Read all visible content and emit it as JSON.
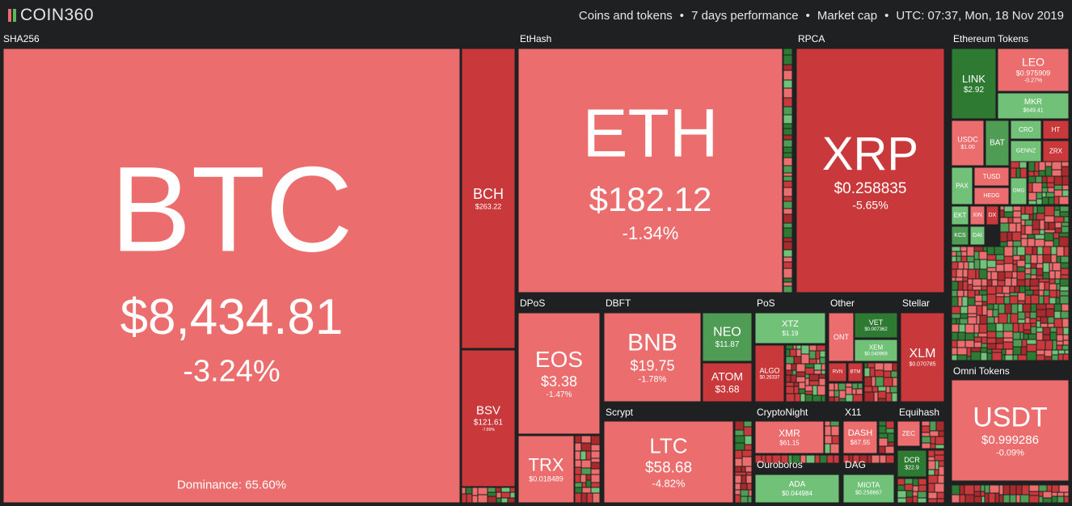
{
  "header": {
    "logo": "COIN360",
    "filters": [
      "Coins and tokens",
      "7 days performance",
      "Market cap",
      "UTC: 07:37, Mon, 18 Nov 2019"
    ]
  },
  "groups": [
    {
      "name": "SHA256",
      "tiles": [
        {
          "name": "BTC",
          "price": "$8,434.81",
          "change": "-3.24%",
          "dominance": "Dominance: 65.60%"
        },
        {
          "name": "BCH",
          "price": "$263.22"
        },
        {
          "name": "BSV",
          "price": "$121.61",
          "change": "-7.89%"
        }
      ]
    },
    {
      "name": "EtHash",
      "tiles": [
        {
          "name": "ETH",
          "price": "$182.12",
          "change": "-1.34%"
        }
      ]
    },
    {
      "name": "RPCA",
      "tiles": [
        {
          "name": "XRP",
          "price": "$0.258835",
          "change": "-5.65%"
        }
      ]
    },
    {
      "name": "Ethereum Tokens",
      "tiles": [
        {
          "name": "LINK",
          "price": "$2.92"
        },
        {
          "name": "LEO",
          "price": "$0.975909",
          "change": "-0.27%"
        },
        {
          "name": "MKR",
          "price": "$649.41"
        },
        {
          "name": "USDC",
          "price": "$1.00"
        },
        {
          "name": "BAT"
        },
        {
          "name": "CRO"
        },
        {
          "name": "HT"
        },
        {
          "name": "GENNZ"
        },
        {
          "name": "ZRX"
        },
        {
          "name": "PAX"
        },
        {
          "name": "TUSD"
        },
        {
          "name": "HEDG"
        },
        {
          "name": "OMG"
        },
        {
          "name": "EKT"
        },
        {
          "name": "XIN"
        },
        {
          "name": "DX"
        },
        {
          "name": "KCS"
        },
        {
          "name": "DAI"
        }
      ]
    },
    {
      "name": "DPoS",
      "tiles": [
        {
          "name": "EOS",
          "price": "$3.38",
          "change": "-1.47%"
        },
        {
          "name": "TRX",
          "price": "$0.018489"
        }
      ]
    },
    {
      "name": "DBFT",
      "tiles": [
        {
          "name": "BNB",
          "price": "$19.75",
          "change": "-1.78%"
        },
        {
          "name": "NEO",
          "price": "$11.87"
        },
        {
          "name": "ATOM",
          "price": "$3.68"
        }
      ]
    },
    {
      "name": "PoS",
      "tiles": [
        {
          "name": "XTZ",
          "price": "$1.19"
        },
        {
          "name": "ALGO",
          "price": "$0.26337"
        }
      ]
    },
    {
      "name": "Other",
      "tiles": [
        {
          "name": "ONT"
        },
        {
          "name": "VET",
          "price": "$0.007362"
        },
        {
          "name": "XEM",
          "price": "$0.040969"
        },
        {
          "name": "RVN"
        },
        {
          "name": "BTM"
        }
      ]
    },
    {
      "name": "Stellar",
      "tiles": [
        {
          "name": "XLM",
          "price": "$0.070785"
        }
      ]
    },
    {
      "name": "Scrypt",
      "tiles": [
        {
          "name": "LTC",
          "price": "$58.68",
          "change": "-4.82%"
        }
      ]
    },
    {
      "name": "CryptoNight",
      "tiles": [
        {
          "name": "XMR",
          "price": "$61.15"
        }
      ]
    },
    {
      "name": "X11",
      "tiles": [
        {
          "name": "DASH",
          "price": "$67.55"
        }
      ]
    },
    {
      "name": "Equihash",
      "tiles": [
        {
          "name": "ZEC"
        },
        {
          "name": "DCR",
          "price": "$22.9"
        }
      ]
    },
    {
      "name": "Ouroboros",
      "tiles": [
        {
          "name": "ADA",
          "price": "$0.044984"
        }
      ]
    },
    {
      "name": "DAG",
      "tiles": [
        {
          "name": "MIOTA",
          "price": "$0.258667"
        }
      ]
    },
    {
      "name": "Omni Tokens",
      "tiles": [
        {
          "name": "USDT",
          "price": "$0.999286",
          "change": "-0.09%"
        }
      ]
    }
  ]
}
